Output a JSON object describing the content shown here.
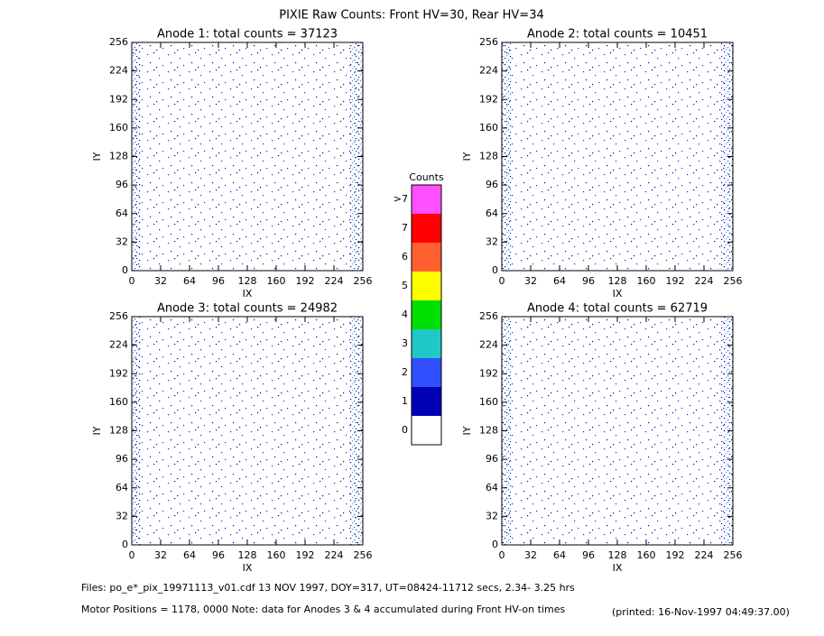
{
  "title": "PIXIE Raw Counts:  Front HV=30, Rear HV=34",
  "chart_data": [
    {
      "type": "heatmap",
      "title": "Anode 1: total counts = 37123",
      "xlabel": "IX",
      "ylabel": "IY",
      "xlim": [
        0,
        256
      ],
      "ylim": [
        0,
        256
      ],
      "xticks": [
        0,
        32,
        64,
        96,
        128,
        160,
        192,
        224,
        256
      ],
      "yticks": [
        0,
        32,
        64,
        96,
        128,
        160,
        192,
        224,
        256
      ]
    },
    {
      "type": "heatmap",
      "title": "Anode 2: total counts = 10451",
      "xlabel": "IX",
      "ylabel": "IY",
      "xlim": [
        0,
        256
      ],
      "ylim": [
        0,
        256
      ],
      "xticks": [
        0,
        32,
        64,
        96,
        128,
        160,
        192,
        224,
        256
      ],
      "yticks": [
        0,
        32,
        64,
        96,
        128,
        160,
        192,
        224,
        256
      ]
    },
    {
      "type": "heatmap",
      "title": "Anode 3: total counts = 24982",
      "xlabel": "IX",
      "ylabel": "IY",
      "xlim": [
        0,
        256
      ],
      "ylim": [
        0,
        256
      ],
      "xticks": [
        0,
        32,
        64,
        96,
        128,
        160,
        192,
        224,
        256
      ],
      "yticks": [
        0,
        32,
        64,
        96,
        128,
        160,
        192,
        224,
        256
      ]
    },
    {
      "type": "heatmap",
      "title": "Anode 4: total counts = 62719",
      "xlabel": "IX",
      "ylabel": "IY",
      "xlim": [
        0,
        256
      ],
      "ylim": [
        0,
        256
      ],
      "xticks": [
        0,
        32,
        64,
        96,
        128,
        160,
        192,
        224,
        256
      ],
      "yticks": [
        0,
        32,
        64,
        96,
        128,
        160,
        192,
        224,
        256
      ]
    }
  ],
  "colorbar": {
    "title": "Counts",
    "labels": [
      "0",
      "1",
      "2",
      "3",
      "4",
      "5",
      "6",
      "7",
      ">7"
    ],
    "colors": [
      "#ffffff",
      "#0000b4",
      "#3050ff",
      "#20c8c8",
      "#00e000",
      "#ffff00",
      "#ff6030",
      "#ff0000",
      "#ff50ff"
    ]
  },
  "footer": {
    "files": "Files: po_e*_pix_19971113_v01.cdf    13 NOV 1997, DOY=317, UT=08424-11712 secs,  2.34- 3.25 hrs",
    "motor": "Motor Positions = 1178, 0000   Note: data for Anodes 3 & 4 accumulated during Front HV-on times",
    "printed": "(printed: 16-Nov-1997 04:49:37.00)"
  }
}
